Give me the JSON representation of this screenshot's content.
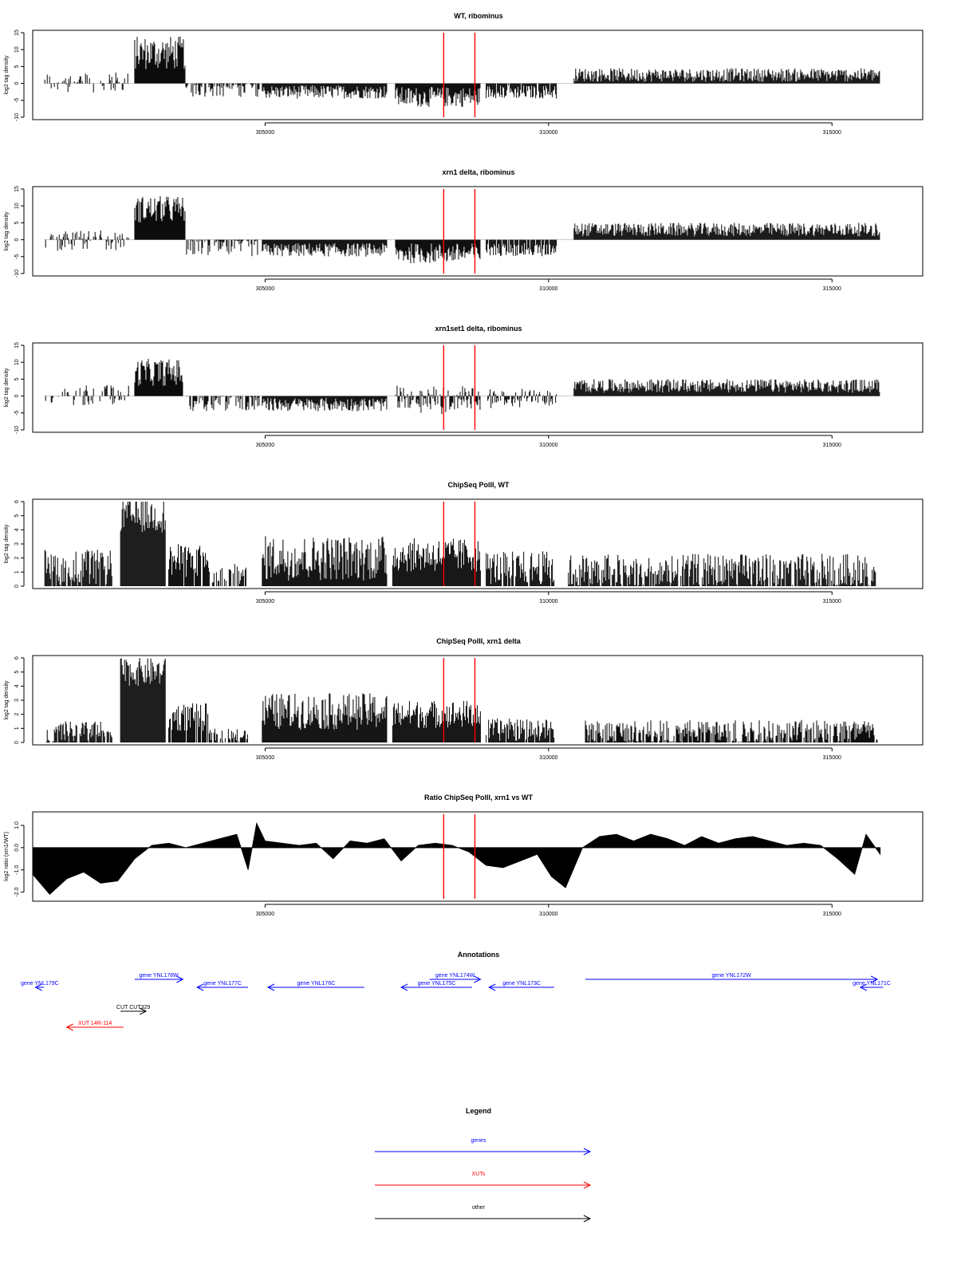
{
  "x_ticks": [
    305000,
    310000,
    315000
  ],
  "x_tick_labels": [
    "305000",
    "310000",
    "315000"
  ],
  "x_range": [
    300900,
    316600
  ],
  "red_markers": [
    308150,
    308700
  ],
  "chart_data": [
    {
      "type": "bar",
      "title": "WT, ribominus",
      "ylabel": "log2 tag density",
      "ylim": [
        -10,
        15
      ],
      "yticks": [
        -10,
        -5,
        0,
        5,
        10,
        15
      ],
      "ytick_labels": [
        "-10",
        "-5",
        "0",
        "5",
        "10",
        "15"
      ],
      "grid": false,
      "segments": [
        {
          "x": [
            301100,
            302600
          ],
          "base": 0,
          "amp": 3,
          "sign": "mixed",
          "density": 0.45
        },
        {
          "x": [
            302700,
            303600
          ],
          "base": 9,
          "amp": 5,
          "sign": "pos",
          "density": 1
        },
        {
          "x": [
            303600,
            304900
          ],
          "base": -1,
          "amp": 3,
          "sign": "neg",
          "density": 0.6
        },
        {
          "x": [
            304950,
            307150
          ],
          "base": -2.5,
          "amp": 2,
          "sign": "neg",
          "density": 1
        },
        {
          "x": [
            307300,
            308800
          ],
          "base": -4,
          "amp": 3,
          "sign": "neg",
          "density": 1
        },
        {
          "x": [
            308900,
            310150
          ],
          "base": -2.5,
          "amp": 2,
          "sign": "neg",
          "density": 0.9
        },
        {
          "x": [
            310450,
            315850
          ],
          "base": 2.5,
          "amp": 2,
          "sign": "pos",
          "density": 1
        }
      ]
    },
    {
      "type": "bar",
      "title": "xrn1 delta, ribominus",
      "ylabel": "log2 tag density",
      "ylim": [
        -10,
        15
      ],
      "yticks": [
        -10,
        -5,
        0,
        5,
        10,
        15
      ],
      "ytick_labels": [
        "-10",
        "-5",
        "0",
        "5",
        "10",
        "15"
      ],
      "grid": false,
      "segments": [
        {
          "x": [
            301100,
            302600
          ],
          "base": -1,
          "amp": 3,
          "sign": "mixed",
          "density": 0.6
        },
        {
          "x": [
            302700,
            303600
          ],
          "base": 9,
          "amp": 4,
          "sign": "pos",
          "density": 1
        },
        {
          "x": [
            303600,
            304900
          ],
          "base": -2,
          "amp": 3,
          "sign": "neg",
          "density": 0.7
        },
        {
          "x": [
            304950,
            307150
          ],
          "base": -3,
          "amp": 2,
          "sign": "neg",
          "density": 1
        },
        {
          "x": [
            307300,
            308800
          ],
          "base": -4,
          "amp": 3,
          "sign": "neg",
          "density": 1
        },
        {
          "x": [
            308900,
            310150
          ],
          "base": -3,
          "amp": 2,
          "sign": "neg",
          "density": 0.9
        },
        {
          "x": [
            310450,
            315850
          ],
          "base": 3,
          "amp": 2,
          "sign": "pos",
          "density": 1
        }
      ]
    },
    {
      "type": "bar",
      "title": "xrn1set1 delta, ribominus",
      "ylabel": "log2 tag density",
      "ylim": [
        -10,
        15
      ],
      "yticks": [
        -10,
        -5,
        0,
        5,
        10,
        15
      ],
      "ytick_labels": [
        "-10",
        "-5",
        "0",
        "5",
        "10",
        "15"
      ],
      "grid": false,
      "segments": [
        {
          "x": [
            301100,
            302600
          ],
          "base": 0,
          "amp": 3,
          "sign": "mixed",
          "density": 0.5
        },
        {
          "x": [
            302700,
            303550
          ],
          "base": 7,
          "amp": 4,
          "sign": "pos",
          "density": 1
        },
        {
          "x": [
            303600,
            304900
          ],
          "base": -1.5,
          "amp": 3,
          "sign": "neg",
          "density": 0.6
        },
        {
          "x": [
            304950,
            307150
          ],
          "base": -2.5,
          "amp": 2,
          "sign": "neg",
          "density": 1
        },
        {
          "x": [
            307300,
            308800
          ],
          "base": -3,
          "amp": 3,
          "sign": "mixed",
          "density": 0.9
        },
        {
          "x": [
            308900,
            310150
          ],
          "base": -2,
          "amp": 2,
          "sign": "mixed",
          "density": 0.8
        },
        {
          "x": [
            310450,
            315850
          ],
          "base": 3,
          "amp": 2,
          "sign": "pos",
          "density": 1
        }
      ]
    },
    {
      "type": "bar",
      "title": "ChipSeq PolII, WT",
      "ylabel": "log2 tag density",
      "ylim": [
        0,
        6
      ],
      "yticks": [
        0,
        1,
        2,
        3,
        4,
        5,
        6
      ],
      "ytick_labels": [
        "0",
        "1",
        "2",
        "3",
        "4",
        "5",
        "6"
      ],
      "grid": false,
      "segments": [
        {
          "x": [
            301100,
            302300
          ],
          "base": 1.3,
          "amp": 1.3,
          "sign": "pos",
          "density": 0.9
        },
        {
          "x": [
            302450,
            303250
          ],
          "base": 5,
          "amp": 1.2,
          "sign": "pos",
          "density": 1
        },
        {
          "x": [
            303300,
            304000
          ],
          "base": 1.8,
          "amp": 1.2,
          "sign": "pos",
          "density": 0.9
        },
        {
          "x": [
            304000,
            304700
          ],
          "base": 0.8,
          "amp": 0.8,
          "sign": "pos",
          "density": 0.6
        },
        {
          "x": [
            304950,
            307150
          ],
          "base": 2,
          "amp": 1.6,
          "sign": "pos",
          "density": 1
        },
        {
          "x": [
            307250,
            308800
          ],
          "base": 2.2,
          "amp": 1.2,
          "sign": "pos",
          "density": 1
        },
        {
          "x": [
            308900,
            310100
          ],
          "base": 1.3,
          "amp": 1.2,
          "sign": "pos",
          "density": 0.9
        },
        {
          "x": [
            310350,
            315800
          ],
          "base": 1,
          "amp": 1.3,
          "sign": "pos",
          "density": 0.85
        }
      ]
    },
    {
      "type": "bar",
      "title": "ChipSeq PolII, xrn1 delta",
      "ylabel": "log2 tag density",
      "ylim": [
        0,
        6
      ],
      "yticks": [
        0,
        1,
        2,
        3,
        4,
        5,
        6
      ],
      "ytick_labels": [
        "0",
        "1",
        "2",
        "3",
        "4",
        "5",
        "6"
      ],
      "grid": false,
      "segments": [
        {
          "x": [
            301100,
            302300
          ],
          "base": 0.7,
          "amp": 0.8,
          "sign": "pos",
          "density": 0.8
        },
        {
          "x": [
            302450,
            303250
          ],
          "base": 5,
          "amp": 1,
          "sign": "pos",
          "density": 1
        },
        {
          "x": [
            303300,
            304000
          ],
          "base": 1.8,
          "amp": 1,
          "sign": "pos",
          "density": 0.9
        },
        {
          "x": [
            304000,
            304700
          ],
          "base": 0.5,
          "amp": 0.5,
          "sign": "pos",
          "density": 0.6
        },
        {
          "x": [
            304950,
            307150
          ],
          "base": 2.2,
          "amp": 1.3,
          "sign": "pos",
          "density": 1
        },
        {
          "x": [
            307250,
            308800
          ],
          "base": 2,
          "amp": 1,
          "sign": "pos",
          "density": 1
        },
        {
          "x": [
            308900,
            310100
          ],
          "base": 0.9,
          "amp": 0.8,
          "sign": "pos",
          "density": 0.9
        },
        {
          "x": [
            310650,
            315800
          ],
          "base": 0.7,
          "amp": 0.9,
          "sign": "pos",
          "density": 0.85
        }
      ]
    },
    {
      "type": "area",
      "title": "Ratio ChipSeq PolII, xrn1 vs WT",
      "ylabel": "log2 ratio (xrn1/WT)",
      "ylim": [
        -2.3,
        1.5
      ],
      "yticks": [
        -2.0,
        -1.0,
        0.0,
        1.0
      ],
      "ytick_labels": [
        "-2.0",
        "-1.0",
        "0.0",
        "1.0"
      ],
      "grid": false,
      "x": [
        300900,
        301200,
        301500,
        301800,
        302100,
        302400,
        302700,
        303000,
        303300,
        303600,
        303900,
        304200,
        304500,
        304700,
        304850,
        305000,
        305300,
        305600,
        305900,
        306200,
        306500,
        306800,
        307100,
        307400,
        307700,
        308000,
        308300,
        308600,
        308900,
        309200,
        309500,
        309800,
        310050,
        310300,
        310600,
        310900,
        311200,
        311500,
        311800,
        312100,
        312400,
        312700,
        313000,
        313300,
        313600,
        313900,
        314200,
        314500,
        314800,
        315100,
        315400,
        315600,
        315850
      ],
      "values": [
        -1.2,
        -2.1,
        -1.4,
        -1.1,
        -1.6,
        -1.5,
        -0.5,
        0.1,
        0.2,
        0.0,
        0.2,
        0.4,
        0.6,
        -1.0,
        1.1,
        0.3,
        0.2,
        0.1,
        0.2,
        -0.5,
        0.3,
        0.2,
        0.4,
        -0.6,
        0.1,
        0.2,
        0.1,
        -0.2,
        -0.8,
        -0.9,
        -0.6,
        -0.3,
        -1.3,
        -1.8,
        0.0,
        0.5,
        0.6,
        0.3,
        0.6,
        0.4,
        0.1,
        0.5,
        0.2,
        0.4,
        0.5,
        0.3,
        0.1,
        0.2,
        0.1,
        -0.5,
        -1.2,
        0.6,
        -0.3
      ]
    }
  ],
  "annotations": {
    "title": "Annotations",
    "features": [
      {
        "label": "gene YNL179C",
        "start": 301100,
        "end": 300950,
        "type": "gene",
        "row": 2
      },
      {
        "label": "gene YNL178W",
        "start": 302700,
        "end": 303550,
        "type": "gene",
        "row": 1
      },
      {
        "label": "gene YNL177C",
        "start": 304700,
        "end": 303800,
        "type": "gene",
        "row": 2
      },
      {
        "label": "gene YNL176C",
        "start": 306750,
        "end": 305050,
        "type": "gene",
        "row": 2
      },
      {
        "label": "gene YNL175C",
        "start": 308650,
        "end": 307400,
        "type": "gene",
        "row": 2
      },
      {
        "label": "gene YNL174W",
        "start": 307900,
        "end": 308800,
        "type": "gene",
        "row": 1
      },
      {
        "label": "gene YNL173C",
        "start": 310100,
        "end": 308950,
        "type": "gene",
        "row": 2
      },
      {
        "label": "gene YNL172W",
        "start": 310650,
        "end": 315800,
        "type": "gene",
        "row": 1
      },
      {
        "label": "gene YNL171C",
        "start": 315900,
        "end": 315500,
        "type": "gene",
        "row": 2
      },
      {
        "label": "CUT CUT329",
        "start": 302450,
        "end": 302900,
        "type": "other",
        "row": 5
      },
      {
        "label": "XUT 14R-114",
        "start": 302500,
        "end": 301500,
        "type": "xut",
        "row": 7
      }
    ]
  },
  "legend": {
    "title": "Legend",
    "items": [
      {
        "label": "genes",
        "color": "#0000ff"
      },
      {
        "label": "XUTs",
        "color": "#ff0000"
      },
      {
        "label": "other",
        "color": "#000000"
      }
    ]
  },
  "colors": {
    "marker": "#ff0000",
    "gene": "#0000ff",
    "xut": "#ff0000",
    "other": "#000000",
    "bars": "#000000"
  }
}
